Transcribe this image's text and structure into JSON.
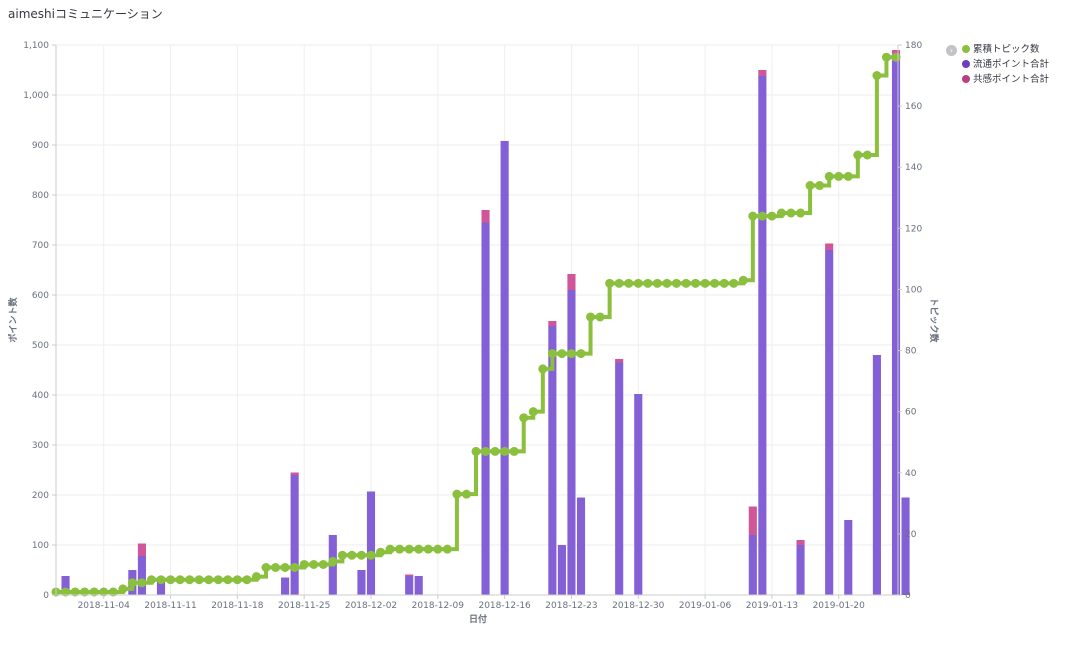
{
  "panel": {
    "title": "aimeshiコミュニケーション"
  },
  "colors": {
    "topics": "#8BBF3E",
    "flow": "#8460D6",
    "empathy": "#D0569A",
    "grid": "#eeeeee"
  },
  "legend": {
    "toggle_icon": "chevron-right-icon",
    "items": [
      {
        "label": "累積トピック数",
        "color": "#8BBF3E"
      },
      {
        "label": "流通ポイント合計",
        "color": "#6A3FC1"
      },
      {
        "label": "共感ポイント合計",
        "color": "#B8407E"
      }
    ]
  },
  "chart_data": {
    "type": "bar",
    "xlabel": "日付",
    "ylabel_left": "ポイント数",
    "ylabel_right": "トピック数",
    "ylim_left": [
      0,
      1100
    ],
    "ylim_right": [
      0,
      180
    ],
    "y_ticks_left": [
      "0",
      "100",
      "200",
      "300",
      "400",
      "500",
      "600",
      "700",
      "800",
      "900",
      "1,000",
      "1,100"
    ],
    "y_ticks_right": [
      "0",
      "20",
      "40",
      "60",
      "80",
      "100",
      "120",
      "140",
      "160",
      "180"
    ],
    "x_range": [
      "2018-10-30",
      "2019-01-26"
    ],
    "x_tick_labels": [
      "2018-11-04",
      "2018-11-11",
      "2018-11-18",
      "2018-11-25",
      "2018-12-02",
      "2018-12-09",
      "2018-12-16",
      "2018-12-23",
      "2018-12-30",
      "2019-01-06",
      "2019-01-13",
      "2019-01-20"
    ],
    "grid": true,
    "legend_position": "top-right",
    "bars": [
      {
        "date": "2018-10-31",
        "flow": 38,
        "empathy": 0
      },
      {
        "date": "2018-11-07",
        "flow": 50,
        "empathy": 0
      },
      {
        "date": "2018-11-08",
        "flow": 78,
        "empathy": 25
      },
      {
        "date": "2018-11-10",
        "flow": 35,
        "empathy": 0
      },
      {
        "date": "2018-11-23",
        "flow": 35,
        "empathy": 0
      },
      {
        "date": "2018-11-24",
        "flow": 240,
        "empathy": 5
      },
      {
        "date": "2018-11-28",
        "flow": 120,
        "empathy": 0
      },
      {
        "date": "2018-12-01",
        "flow": 50,
        "empathy": 0
      },
      {
        "date": "2018-12-02",
        "flow": 207,
        "empathy": 0
      },
      {
        "date": "2018-12-06",
        "flow": 38,
        "empathy": 3
      },
      {
        "date": "2018-12-07",
        "flow": 38,
        "empathy": 0
      },
      {
        "date": "2018-12-14",
        "flow": 745,
        "empathy": 25
      },
      {
        "date": "2018-12-16",
        "flow": 908,
        "empathy": 0
      },
      {
        "date": "2018-12-21",
        "flow": 538,
        "empathy": 10
      },
      {
        "date": "2018-12-22",
        "flow": 100,
        "empathy": 0
      },
      {
        "date": "2018-12-23",
        "flow": 610,
        "empathy": 32
      },
      {
        "date": "2018-12-24",
        "flow": 195,
        "empathy": 0
      },
      {
        "date": "2018-12-28",
        "flow": 465,
        "empathy": 7
      },
      {
        "date": "2018-12-30",
        "flow": 402,
        "empathy": 0
      },
      {
        "date": "2019-01-11",
        "flow": 120,
        "empathy": 57
      },
      {
        "date": "2019-01-12",
        "flow": 1038,
        "empathy": 12
      },
      {
        "date": "2019-01-16",
        "flow": 100,
        "empathy": 10
      },
      {
        "date": "2019-01-19",
        "flow": 690,
        "empathy": 13
      },
      {
        "date": "2019-01-21",
        "flow": 150,
        "empathy": 0
      },
      {
        "date": "2019-01-24",
        "flow": 480,
        "empathy": 0
      },
      {
        "date": "2019-01-26",
        "flow": 1068,
        "empathy": 22
      },
      {
        "date": "2019-01-27",
        "flow": 195,
        "empathy": 0
      }
    ],
    "topics": {
      "name": "累積トピック数",
      "x": [
        "2018-10-30",
        "2018-10-31",
        "2018-11-01",
        "2018-11-02",
        "2018-11-03",
        "2018-11-04",
        "2018-11-05",
        "2018-11-06",
        "2018-11-07",
        "2018-11-08",
        "2018-11-09",
        "2018-11-10",
        "2018-11-11",
        "2018-11-12",
        "2018-11-13",
        "2018-11-14",
        "2018-11-15",
        "2018-11-16",
        "2018-11-17",
        "2018-11-18",
        "2018-11-19",
        "2018-11-20",
        "2018-11-21",
        "2018-11-22",
        "2018-11-23",
        "2018-11-24",
        "2018-11-25",
        "2018-11-26",
        "2018-11-27",
        "2018-11-28",
        "2018-11-29",
        "2018-11-30",
        "2018-12-01",
        "2018-12-02",
        "2018-12-03",
        "2018-12-04",
        "2018-12-05",
        "2018-12-06",
        "2018-12-07",
        "2018-12-08",
        "2018-12-09",
        "2018-12-10",
        "2018-12-11",
        "2018-12-12",
        "2018-12-13",
        "2018-12-14",
        "2018-12-15",
        "2018-12-16",
        "2018-12-17",
        "2018-12-18",
        "2018-12-19",
        "2018-12-20",
        "2018-12-21",
        "2018-12-22",
        "2018-12-23",
        "2018-12-24",
        "2018-12-25",
        "2018-12-26",
        "2018-12-27",
        "2018-12-28",
        "2018-12-29",
        "2018-12-30",
        "2018-12-31",
        "2019-01-01",
        "2019-01-02",
        "2019-01-03",
        "2019-01-04",
        "2019-01-05",
        "2019-01-06",
        "2019-01-07",
        "2019-01-08",
        "2019-01-09",
        "2019-01-10",
        "2019-01-11",
        "2019-01-12",
        "2019-01-13",
        "2019-01-14",
        "2019-01-15",
        "2019-01-16",
        "2019-01-17",
        "2019-01-18",
        "2019-01-19",
        "2019-01-20",
        "2019-01-21",
        "2019-01-22",
        "2019-01-23",
        "2019-01-24",
        "2019-01-25",
        "2019-01-26"
      ],
      "y": [
        1,
        1,
        1,
        1,
        1,
        1,
        1,
        2,
        4,
        4,
        5,
        5,
        5,
        5,
        5,
        5,
        5,
        5,
        5,
        5,
        5,
        6,
        9,
        9,
        9,
        9,
        10,
        10,
        10,
        11,
        13,
        13,
        13,
        13,
        14,
        15,
        15,
        15,
        15,
        15,
        15,
        15,
        33,
        33,
        47,
        47,
        47,
        47,
        47,
        58,
        60,
        74,
        79,
        79,
        79,
        79,
        91,
        91,
        102,
        102,
        102,
        102,
        102,
        102,
        102,
        102,
        102,
        102,
        102,
        102,
        102,
        102,
        103,
        124,
        124,
        124,
        125,
        125,
        125,
        134,
        134,
        137,
        137,
        137,
        144,
        144,
        170,
        176,
        176
      ]
    }
  }
}
